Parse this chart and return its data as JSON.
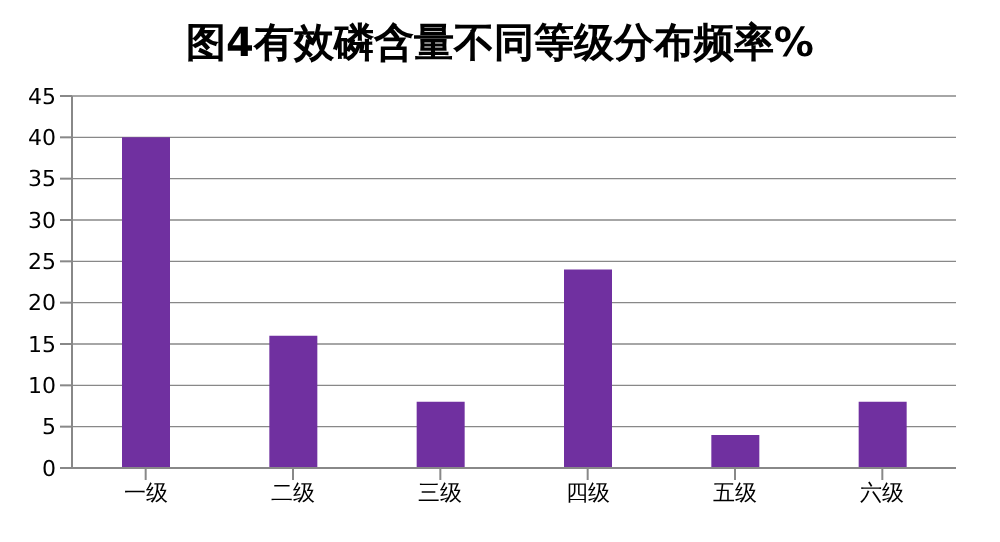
{
  "chart_data": {
    "type": "bar",
    "title": "图4有效磷含量不同等级分布频率%",
    "categories": [
      "一级",
      "二级",
      "三级",
      "四级",
      "五级",
      "六级"
    ],
    "values": [
      40,
      16,
      8,
      24,
      4,
      8
    ],
    "color": "#7030a0",
    "ylim": [
      0,
      45
    ],
    "yticks": [
      0,
      5,
      10,
      15,
      20,
      25,
      30,
      35,
      40,
      45
    ],
    "grid": "y"
  }
}
